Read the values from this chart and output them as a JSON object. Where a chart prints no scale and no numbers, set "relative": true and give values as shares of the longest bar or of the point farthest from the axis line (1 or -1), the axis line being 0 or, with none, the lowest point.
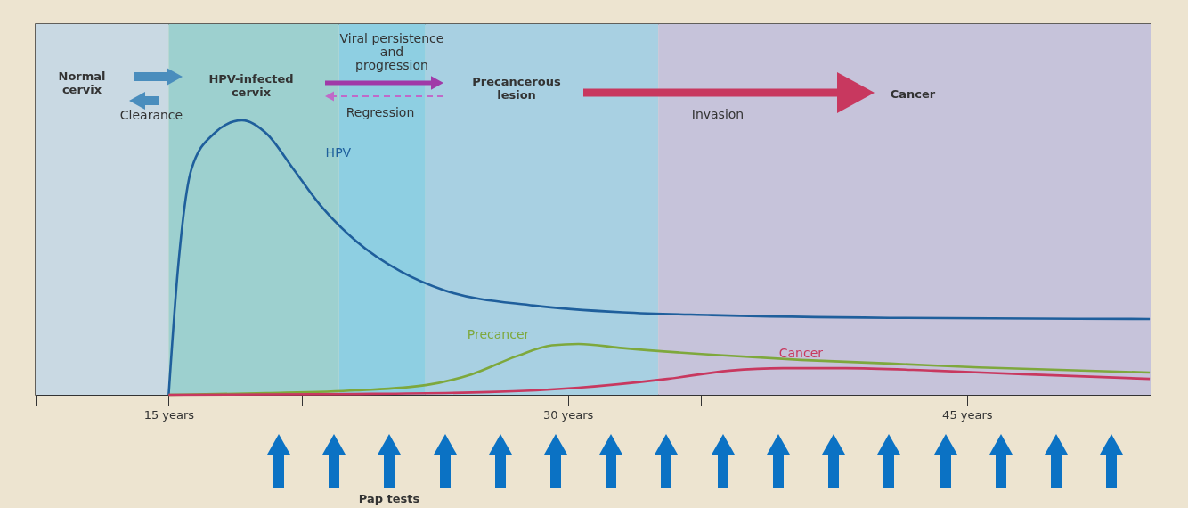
{
  "chart_data": {
    "type": "line",
    "relative": true,
    "grid": false,
    "xlim": [
      10,
      51.9
    ],
    "xticks": [
      {
        "value": 10,
        "label": null
      },
      {
        "value": 15,
        "label": "15 years"
      },
      {
        "value": 20,
        "label": null
      },
      {
        "value": 25,
        "label": null
      },
      {
        "value": 30,
        "label": "30 years"
      },
      {
        "value": 35,
        "label": null
      },
      {
        "value": 40,
        "label": null
      },
      {
        "value": 45,
        "label": "45 years"
      }
    ],
    "series": [
      {
        "name": "HPV",
        "color": "#1f5f9c",
        "x": [
          15,
          15.35,
          15.85,
          16.69,
          17.76,
          18.69,
          19.7,
          20.7,
          22.04,
          23.71,
          25.38,
          28.73,
          32.07,
          35.41,
          42.1,
          51.87
        ],
        "values": [
          0,
          0.46,
          0.82,
          0.95,
          1,
          0.95,
          0.82,
          0.69,
          0.56,
          0.45,
          0.38,
          0.325,
          0.3,
          0.29,
          0.28,
          0.276
        ]
      },
      {
        "name": "Precancer",
        "color": "#7ea83c",
        "x": [
          15,
          18.69,
          22.04,
          24.71,
          26.39,
          28.06,
          29.4,
          30.4,
          32.07,
          35.41,
          38.76,
          42.1,
          45.45,
          51.87
        ],
        "values": [
          0,
          0.006,
          0.016,
          0.036,
          0.075,
          0.14,
          0.18,
          0.185,
          0.17,
          0.146,
          0.127,
          0.114,
          0.1,
          0.081
        ]
      },
      {
        "name": "Cancer",
        "color": "#c8385f",
        "x": [
          15,
          22.04,
          27.05,
          30.4,
          33.74,
          36.08,
          38.09,
          40.43,
          43.77,
          47.12,
          51.87
        ],
        "values": [
          0,
          0.003,
          0.01,
          0.026,
          0.058,
          0.088,
          0.097,
          0.097,
          0.088,
          0.075,
          0.058
        ]
      }
    ],
    "bands": [
      {
        "axis": "x",
        "from": 10,
        "to": 15,
        "color": "#c9d9e3"
      },
      {
        "axis": "x",
        "from": 15,
        "to": 21.4,
        "color": "#9dd0cf"
      },
      {
        "axis": "x",
        "from": 21.4,
        "to": 24.65,
        "color": "#8ecfe2"
      },
      {
        "axis": "x",
        "from": 24.65,
        "to": 33.4,
        "color": "#a8d0e2"
      },
      {
        "axis": "x",
        "from": 33.4,
        "to": 51.9,
        "color": "#c6c3da"
      }
    ],
    "annotations": [
      "Normal\ncervix",
      "Clearance",
      "HPV-infected\ncervix",
      "Viral persistence\nand\nprogression",
      "Regression",
      "Precancerous\nlesion",
      "Invasion",
      "Cancer",
      "Pap tests"
    ]
  }
}
